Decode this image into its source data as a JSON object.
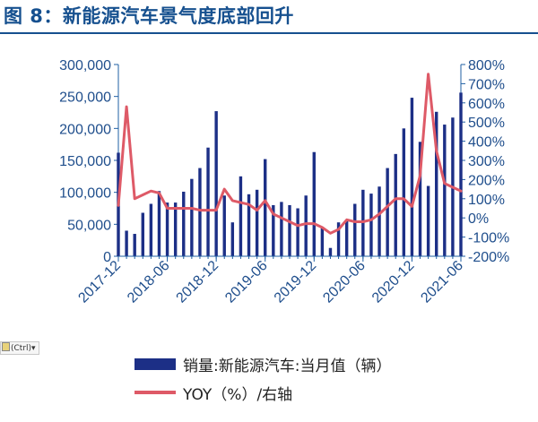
{
  "header": {
    "title": "图 8：新能源汽车景气度底部回升"
  },
  "widget": {
    "ctrl_label": "(Ctrl)▾"
  },
  "chart_data": {
    "type": "bar",
    "x_tick_labels": [
      "2017-12",
      "2018-06",
      "2018-12",
      "2019-06",
      "2019-12",
      "2020-06",
      "2020-12",
      "2021-06"
    ],
    "left_axis": {
      "ticks": [
        "0",
        "50,000",
        "100,000",
        "150,000",
        "200,000",
        "250,000",
        "300,000"
      ],
      "ylim": [
        0,
        300000
      ]
    },
    "right_axis": {
      "ticks": [
        "-200%",
        "-100%",
        "0%",
        "100%",
        "200%",
        "300%",
        "400%",
        "500%",
        "600%",
        "700%",
        "800%"
      ],
      "ylim": [
        -200,
        800
      ]
    },
    "categories": [
      "2017-12",
      "2018-01",
      "2018-02",
      "2018-03",
      "2018-04",
      "2018-05",
      "2018-06",
      "2018-07",
      "2018-08",
      "2018-09",
      "2018-10",
      "2018-11",
      "2018-12",
      "2019-01",
      "2019-02",
      "2019-03",
      "2019-04",
      "2019-05",
      "2019-06",
      "2019-07",
      "2019-08",
      "2019-09",
      "2019-10",
      "2019-11",
      "2019-12",
      "2020-01",
      "2020-02",
      "2020-03",
      "2020-04",
      "2020-05",
      "2020-06",
      "2020-07",
      "2020-08",
      "2020-09",
      "2020-10",
      "2020-11",
      "2020-12",
      "2021-01",
      "2021-02",
      "2021-03",
      "2021-04",
      "2021-05",
      "2021-06"
    ],
    "series": [
      {
        "name": "销量:新能源汽车:当月值（辆）",
        "type": "bar",
        "axis": "left",
        "color": "#1c2f86",
        "values": [
          162000,
          40000,
          35000,
          68000,
          82000,
          102000,
          84000,
          84000,
          101000,
          121000,
          138000,
          170000,
          227000,
          95000,
          53000,
          125000,
          97000,
          104000,
          152000,
          80000,
          85000,
          80000,
          75000,
          95000,
          163000,
          44000,
          13000,
          53000,
          57000,
          82000,
          104000,
          98000,
          109000,
          138000,
          160000,
          200000,
          248000,
          179000,
          110000,
          226000,
          206000,
          217000,
          256000
        ]
      },
      {
        "name": "YOY（%）/右轴",
        "type": "line",
        "axis": "right",
        "color": "#de5a67",
        "values": [
          65,
          580,
          100,
          120,
          140,
          130,
          50,
          50,
          50,
          50,
          40,
          40,
          40,
          150,
          90,
          80,
          70,
          40,
          90,
          20,
          0,
          -20,
          -40,
          -30,
          -30,
          -50,
          -80,
          -60,
          -10,
          -20,
          -20,
          -10,
          20,
          60,
          100,
          100,
          60,
          220,
          750,
          350,
          180,
          160,
          140
        ]
      }
    ],
    "legend": "bottom",
    "grid": false
  }
}
